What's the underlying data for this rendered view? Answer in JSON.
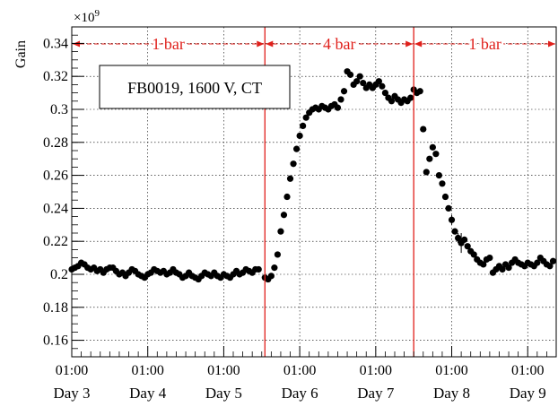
{
  "chart_data": {
    "type": "scatter",
    "title": "",
    "ylabel": "Gain",
    "xlabel": "",
    "y_exponent": "×10",
    "y_exponent_power": "9",
    "ylim": [
      0.15,
      0.35
    ],
    "y_ticks": [
      "0.16",
      "0.18",
      "0.2",
      "0.22",
      "0.24",
      "0.26",
      "0.28",
      "0.3",
      "0.32",
      "0.34"
    ],
    "x_axis": {
      "unit": "hours",
      "range": [
        0,
        153
      ],
      "ticks": [
        {
          "hour": 0,
          "time": "01:00",
          "day": "Day 3"
        },
        {
          "hour": 24,
          "time": "01:00",
          "day": "Day 4"
        },
        {
          "hour": 48,
          "time": "01:00",
          "day": "Day 5"
        },
        {
          "hour": 72,
          "time": "01:00",
          "day": "Day 6"
        },
        {
          "hour": 96,
          "time": "01:00",
          "day": "Day 7"
        },
        {
          "hour": 120,
          "time": "01:00",
          "day": "Day 8"
        },
        {
          "hour": 144,
          "time": "01:00",
          "day": "Day 9"
        }
      ]
    },
    "grid": true,
    "legend_box": "FB0019, 1600 V, CT",
    "pressure_regions": [
      {
        "label": "1 bar",
        "from": 0,
        "to": 61
      },
      {
        "label": "4 bar",
        "from": 61,
        "to": 108
      },
      {
        "label": "1 bar",
        "from": 108,
        "to": 153
      }
    ],
    "boundary_lines": [
      61,
      108
    ],
    "series": [
      {
        "points": [
          [
            0,
            0.203
          ],
          [
            1,
            0.204
          ],
          [
            2,
            0.205
          ],
          [
            3,
            0.207
          ],
          [
            4,
            0.206
          ],
          [
            5,
            0.204
          ],
          [
            6,
            0.203
          ],
          [
            7,
            0.204
          ],
          [
            8,
            0.202
          ],
          [
            9,
            0.203
          ],
          [
            10,
            0.201
          ],
          [
            11,
            0.203
          ],
          [
            12,
            0.204
          ],
          [
            13,
            0.204
          ],
          [
            14,
            0.202
          ],
          [
            15,
            0.2
          ],
          [
            16,
            0.201
          ],
          [
            17,
            0.199
          ],
          [
            18,
            0.201
          ],
          [
            19,
            0.203
          ],
          [
            20,
            0.202
          ],
          [
            21,
            0.2
          ],
          [
            22,
            0.199
          ],
          [
            23,
            0.198
          ],
          [
            24,
            0.2
          ],
          [
            25,
            0.201
          ],
          [
            26,
            0.203
          ],
          [
            27,
            0.202
          ],
          [
            28,
            0.201
          ],
          [
            29,
            0.202
          ],
          [
            30,
            0.2
          ],
          [
            31,
            0.201
          ],
          [
            32,
            0.203
          ],
          [
            33,
            0.201
          ],
          [
            34,
            0.2
          ],
          [
            35,
            0.198
          ],
          [
            36,
            0.199
          ],
          [
            37,
            0.201
          ],
          [
            38,
            0.199
          ],
          [
            39,
            0.198
          ],
          [
            40,
            0.197
          ],
          [
            41,
            0.199
          ],
          [
            42,
            0.201
          ],
          [
            43,
            0.2
          ],
          [
            44,
            0.199
          ],
          [
            45,
            0.201
          ],
          [
            46,
            0.199
          ],
          [
            47,
            0.198
          ],
          [
            48,
            0.2
          ],
          [
            49,
            0.199
          ],
          [
            50,
            0.198
          ],
          [
            51,
            0.2
          ],
          [
            52,
            0.202
          ],
          [
            53,
            0.2
          ],
          [
            54,
            0.201
          ],
          [
            55,
            0.203
          ],
          [
            56,
            0.202
          ],
          [
            57,
            0.201
          ],
          [
            58,
            0.203
          ],
          [
            59,
            0.203
          ],
          [
            61,
            0.198
          ],
          [
            62,
            0.197
          ],
          [
            63,
            0.199
          ],
          [
            64,
            0.204
          ],
          [
            65,
            0.212
          ],
          [
            66,
            0.226
          ],
          [
            67,
            0.236
          ],
          [
            68,
            0.247
          ],
          [
            69,
            0.258
          ],
          [
            70,
            0.267
          ],
          [
            71,
            0.276
          ],
          [
            72,
            0.284
          ],
          [
            73,
            0.29
          ],
          [
            74,
            0.295
          ],
          [
            75,
            0.298
          ],
          [
            76,
            0.3
          ],
          [
            77,
            0.301
          ],
          [
            78,
            0.3
          ],
          [
            79,
            0.302
          ],
          [
            80,
            0.301
          ],
          [
            81,
            0.3
          ],
          [
            82,
            0.302
          ],
          [
            83,
            0.303
          ],
          [
            84,
            0.301
          ],
          [
            85,
            0.306
          ],
          [
            86,
            0.311
          ],
          [
            87,
            0.323
          ],
          [
            88,
            0.321
          ],
          [
            89,
            0.315
          ],
          [
            90,
            0.317
          ],
          [
            91,
            0.32
          ],
          [
            92,
            0.316
          ],
          [
            93,
            0.313
          ],
          [
            94,
            0.315
          ],
          [
            95,
            0.313
          ],
          [
            96,
            0.315
          ],
          [
            97,
            0.317
          ],
          [
            98,
            0.314
          ],
          [
            99,
            0.31
          ],
          [
            100,
            0.307
          ],
          [
            101,
            0.305
          ],
          [
            102,
            0.308
          ],
          [
            103,
            0.306
          ],
          [
            104,
            0.304
          ],
          [
            105,
            0.306
          ],
          [
            106,
            0.305
          ],
          [
            107,
            0.307
          ],
          [
            108,
            0.312
          ],
          [
            109,
            0.31
          ],
          [
            110,
            0.311
          ],
          [
            111,
            0.288
          ],
          [
            112,
            0.262
          ],
          [
            113,
            0.27
          ],
          [
            114,
            0.277
          ],
          [
            115,
            0.273
          ],
          [
            116,
            0.26
          ],
          [
            117,
            0.255
          ],
          [
            118,
            0.247
          ],
          [
            119,
            0.24
          ],
          [
            120,
            0.233
          ],
          [
            121,
            0.226
          ],
          [
            122,
            0.222
          ],
          [
            123,
            0.219
          ],
          [
            124,
            0.221
          ],
          [
            125,
            0.217
          ],
          [
            126,
            0.214
          ],
          [
            127,
            0.212
          ],
          [
            128,
            0.209
          ],
          [
            129,
            0.207
          ],
          [
            130,
            0.206
          ],
          [
            131,
            0.209
          ],
          [
            132,
            0.21
          ],
          [
            133,
            0.201
          ],
          [
            134,
            0.203
          ],
          [
            135,
            0.205
          ],
          [
            136,
            0.203
          ],
          [
            137,
            0.206
          ],
          [
            138,
            0.204
          ],
          [
            139,
            0.207
          ],
          [
            140,
            0.209
          ],
          [
            141,
            0.207
          ],
          [
            142,
            0.206
          ],
          [
            143,
            0.205
          ],
          [
            144,
            0.207
          ],
          [
            145,
            0.206
          ],
          [
            146,
            0.205
          ],
          [
            147,
            0.207
          ],
          [
            148,
            0.21
          ],
          [
            149,
            0.208
          ],
          [
            150,
            0.206
          ],
          [
            151,
            0.205
          ],
          [
            152,
            0.208
          ]
        ]
      }
    ],
    "error_bars": [
      [
        120,
        0.233,
        0.003
      ],
      [
        122,
        0.222,
        0.003
      ],
      [
        123,
        0.219,
        0.006
      ]
    ]
  }
}
